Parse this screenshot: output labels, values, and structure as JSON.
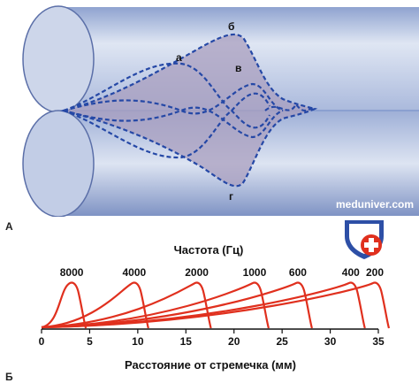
{
  "panel_a": {
    "letter": "А",
    "wave_labels": {
      "a": "а",
      "b": "б",
      "v": "в",
      "g": "г"
    },
    "watermark": "meduniver.com"
  },
  "panel_b": {
    "letter": "Б",
    "xlabel": "Расстояние от стремечка (мм)",
    "freq_title": "Частота (Гц)",
    "x_ticks": [
      0,
      5,
      10,
      15,
      20,
      25,
      30,
      35
    ],
    "xlim": [
      0,
      35
    ],
    "curve_color": "#e0301e",
    "frequencies": [
      {
        "label": "8000",
        "peak_mm": 3.5
      },
      {
        "label": "4000",
        "peak_mm": 10
      },
      {
        "label": "2000",
        "peak_mm": 16.5
      },
      {
        "label": "1000",
        "peak_mm": 22.5
      },
      {
        "label": "600",
        "peak_mm": 27
      },
      {
        "label": "400",
        "peak_mm": 32.5
      },
      {
        "label": "200",
        "peak_mm": 35
      }
    ]
  },
  "colors": {
    "tube": "#bcc9e3",
    "wave": "#2548a6",
    "envelope": "#a99fbf"
  }
}
